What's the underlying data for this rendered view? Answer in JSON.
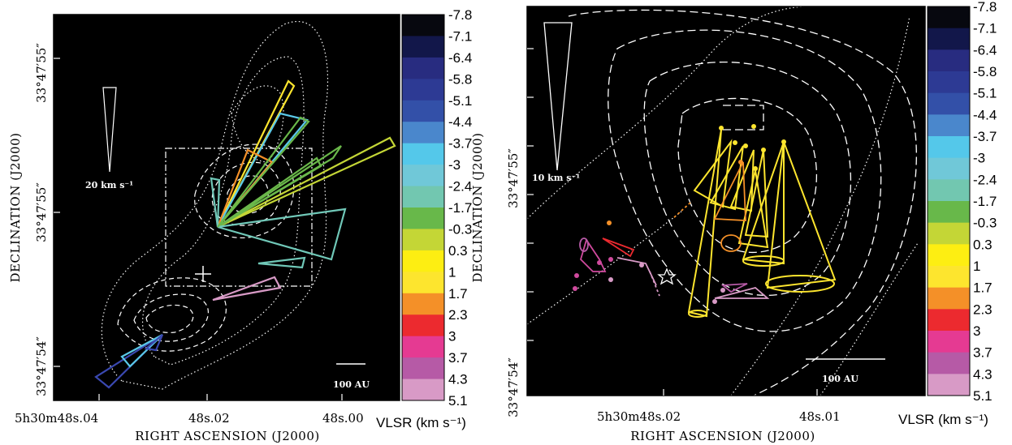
{
  "figure": {
    "panels": [
      {
        "id": "left",
        "xlabel": "RIGHT ASCENSION (J2000)",
        "ylabel": "DECLINATION (J2000)",
        "ra_ticks": [
          "5h30m48s.04",
          "48s.02",
          "48s.00"
        ],
        "dec_ticks": [
          "33°47′55″",
          "33°47′55″",
          "33°47′54″"
        ],
        "velocity_scale_label": "20 km s⁻¹",
        "scale_bar_label": "100 AU",
        "colorbar": {
          "title": "VLSR (km s⁻¹)",
          "labels": [
            "-7.8",
            "-7.1",
            "-6.4",
            "-5.8",
            "-5.1",
            "-4.4",
            "-3.7",
            "-3",
            "-2.4",
            "-1.7",
            "-0.3",
            "0.3",
            "1",
            "1.7",
            "2.3",
            "3",
            "3.7",
            "4.3",
            "5.1"
          ]
        }
      },
      {
        "id": "right",
        "xlabel": "RIGHT ASCENSION (J2000)",
        "ylabel": "DECLINATION (J2000)",
        "ra_ticks": [
          "5h30m48s.02",
          "48s.01"
        ],
        "dec_ticks": [
          "33°47′55″",
          "33°47′54″"
        ],
        "velocity_scale_label": "10 km s⁻¹",
        "scale_bar_label": "100 AU",
        "colorbar": {
          "title": "VLSR (km s⁻¹)",
          "labels": [
            "-7.8",
            "-7.1",
            "-6.4",
            "-5.8",
            "-5.1",
            "-4.4",
            "-3.7",
            "-3",
            "-2.4",
            "-1.7",
            "-0.3",
            "0.3",
            "1",
            "1.7",
            "2.3",
            "3",
            "3.7",
            "4.3",
            "5.1"
          ]
        }
      }
    ],
    "colorbar_colors": [
      "#07080f",
      "#12174a",
      "#282c80",
      "#2d3a94",
      "#3350a8",
      "#4a87cc",
      "#54c8ea",
      "#70c8d8",
      "#72c7b0",
      "#68b84a",
      "#c4d636",
      "#fdee12",
      "#fde52e",
      "#f49028",
      "#ec2a2f",
      "#e53a92",
      "#b65aa6",
      "#d89ac6"
    ],
    "vector_colors": {
      "blue": "#3a48b0",
      "cyan": "#5ac8e8",
      "teal": "#70c8b8",
      "green": "#6ab84a",
      "lime": "#c4d636",
      "yellow": "#fde52e",
      "orange": "#f49028",
      "red": "#ec2a2f",
      "magenta": "#d04a9e",
      "pink": "#d89ac6"
    }
  }
}
